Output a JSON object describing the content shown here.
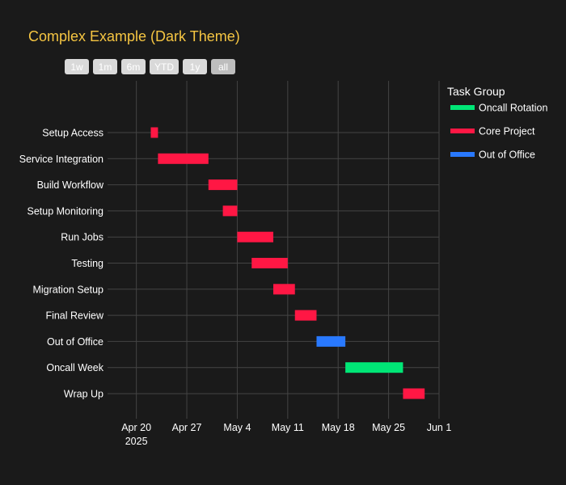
{
  "chart_data": {
    "type": "gantt",
    "title": "Complex Example (Dark Theme)",
    "range_buttons": [
      "1w",
      "1m",
      "6m",
      "YTD",
      "1y",
      "all"
    ],
    "active_button": "all",
    "x_range": [
      "2025-04-16",
      "2025-06-01"
    ],
    "x_ticks": [
      {
        "date": "2025-04-20",
        "label": "Apr 20",
        "sublabel": "2025"
      },
      {
        "date": "2025-04-27",
        "label": "Apr 27",
        "sublabel": ""
      },
      {
        "date": "2025-05-04",
        "label": "May 4",
        "sublabel": ""
      },
      {
        "date": "2025-05-11",
        "label": "May 11",
        "sublabel": ""
      },
      {
        "date": "2025-05-18",
        "label": "May 18",
        "sublabel": ""
      },
      {
        "date": "2025-05-25",
        "label": "May 25",
        "sublabel": ""
      },
      {
        "date": "2025-06-01",
        "label": "Jun 1",
        "sublabel": ""
      }
    ],
    "legend": {
      "title": "Task Group",
      "placement": "right",
      "entries": [
        {
          "name": "Oncall Rotation",
          "color": "#00e676"
        },
        {
          "name": "Core Project",
          "color": "#ff1744"
        },
        {
          "name": "Out of Office",
          "color": "#2979ff"
        }
      ]
    },
    "tasks": [
      {
        "name": "Setup Access",
        "start": "2025-04-22",
        "end": "2025-04-23",
        "group": "Core Project"
      },
      {
        "name": "Service Integration",
        "start": "2025-04-23",
        "end": "2025-04-30",
        "group": "Core Project"
      },
      {
        "name": "Build Workflow",
        "start": "2025-04-30",
        "end": "2025-05-04",
        "group": "Core Project"
      },
      {
        "name": "Setup Monitoring",
        "start": "2025-05-02",
        "end": "2025-05-04",
        "group": "Core Project"
      },
      {
        "name": "Run Jobs",
        "start": "2025-05-04",
        "end": "2025-05-09",
        "group": "Core Project"
      },
      {
        "name": "Testing",
        "start": "2025-05-06",
        "end": "2025-05-11",
        "group": "Core Project"
      },
      {
        "name": "Migration Setup",
        "start": "2025-05-09",
        "end": "2025-05-12",
        "group": "Core Project"
      },
      {
        "name": "Final Review",
        "start": "2025-05-12",
        "end": "2025-05-15",
        "group": "Core Project"
      },
      {
        "name": "Out of Office",
        "start": "2025-05-15",
        "end": "2025-05-19",
        "group": "Out of Office"
      },
      {
        "name": "Oncall Week",
        "start": "2025-05-19",
        "end": "2025-05-27",
        "group": "Oncall Rotation"
      },
      {
        "name": "Wrap Up",
        "start": "2025-05-27",
        "end": "2025-05-30",
        "group": "Core Project"
      }
    ]
  }
}
